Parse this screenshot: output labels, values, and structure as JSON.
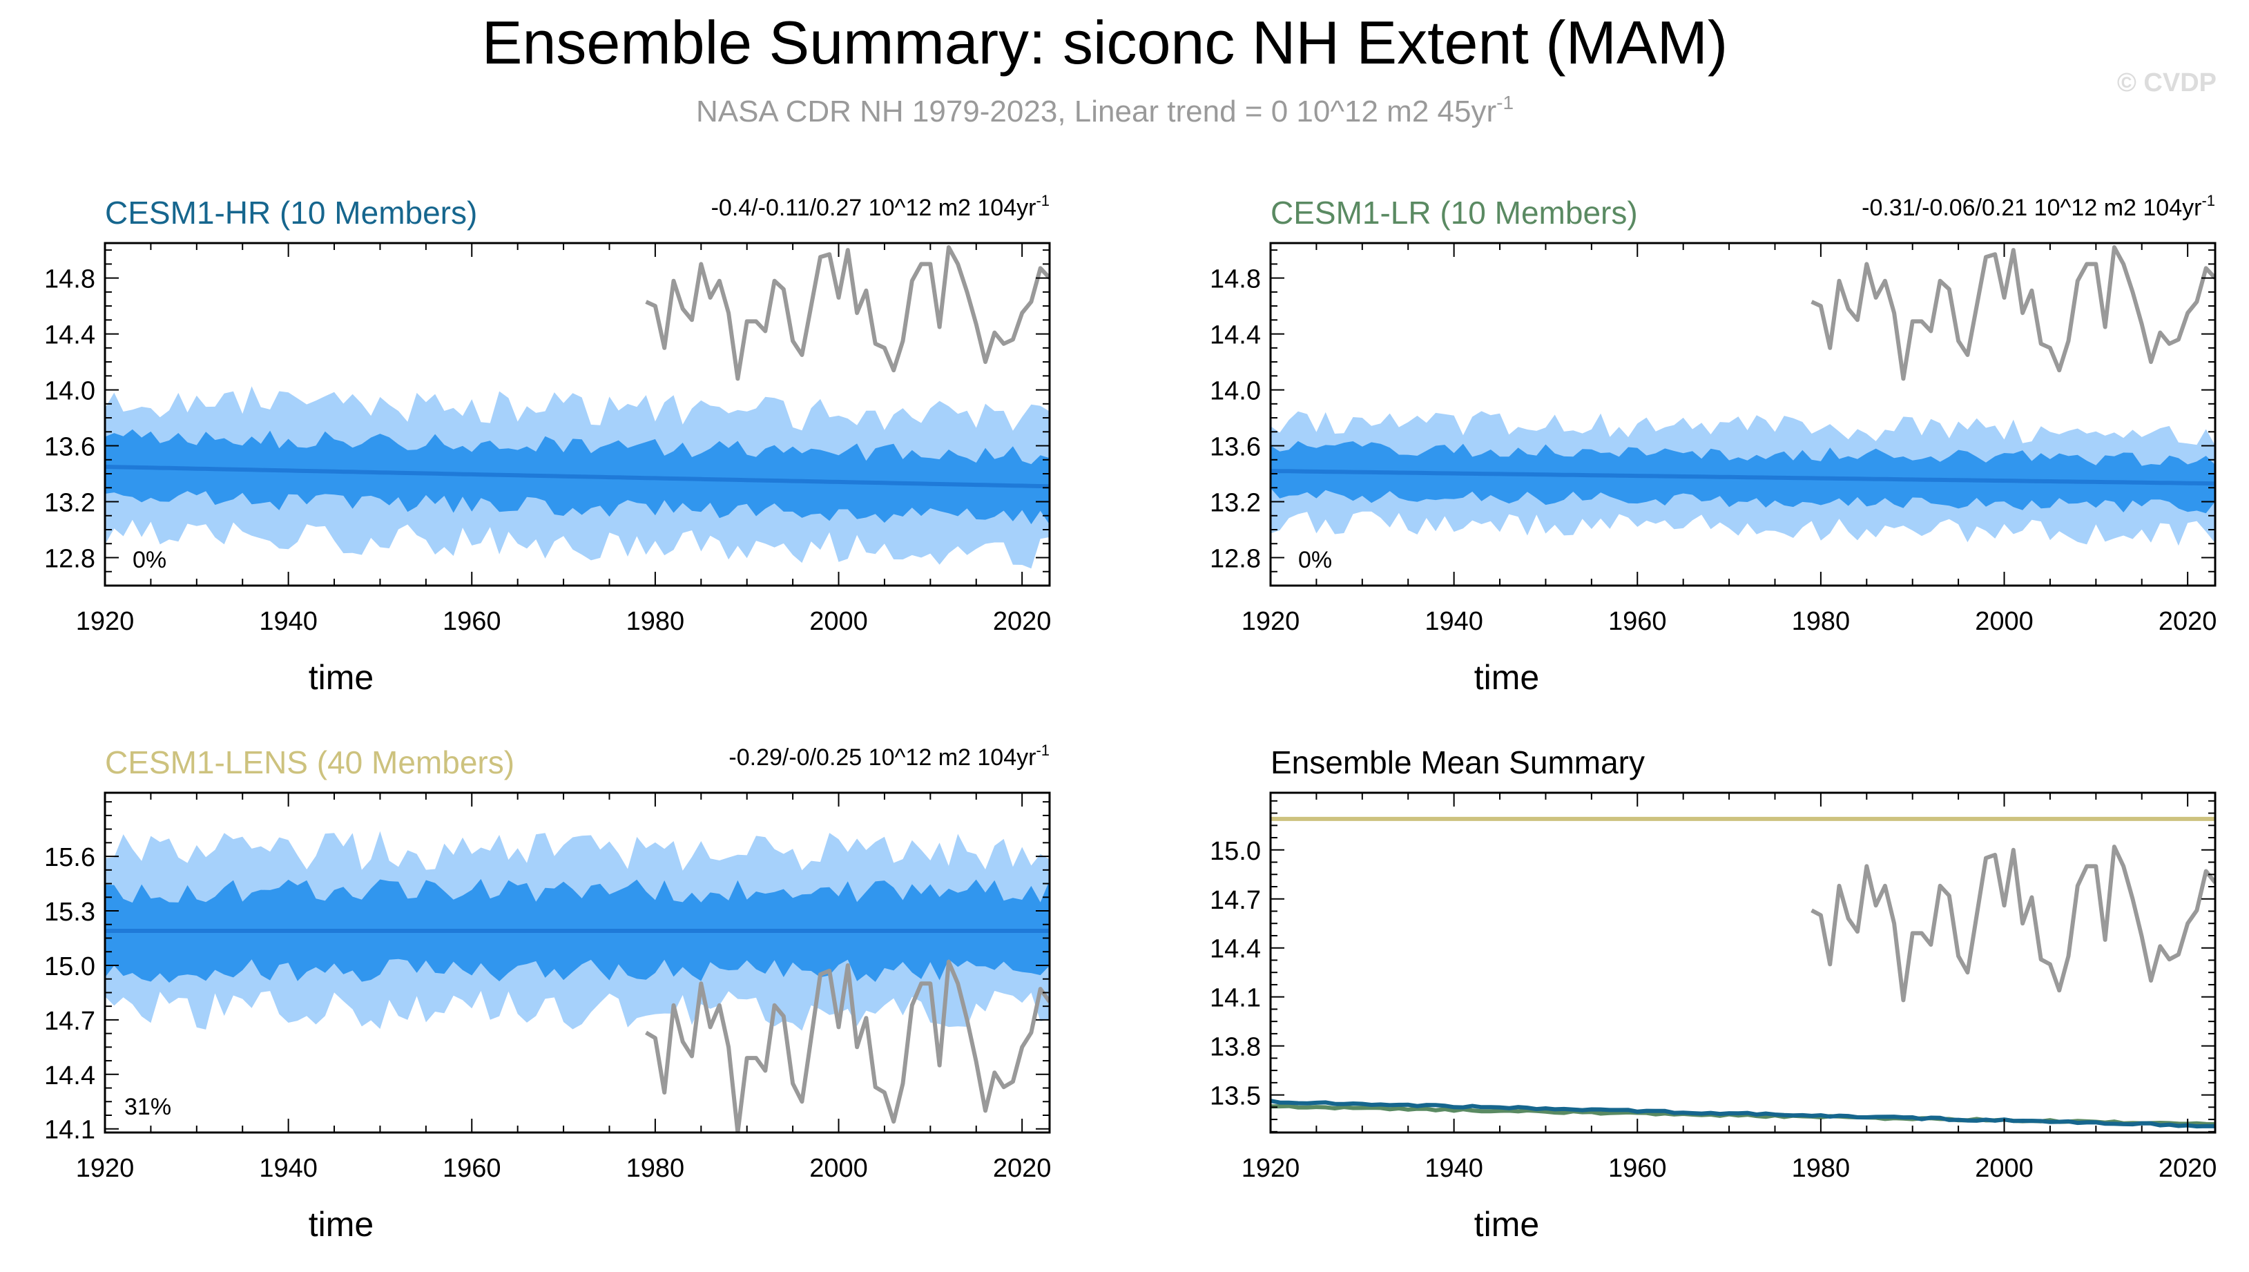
{
  "title": "Ensemble Summary: siconc NH Extent (MAM)",
  "subtitle": "NASA CDR NH 1979-2023, Linear trend = 0 10^12 m2 45yr",
  "subtitle_sup": "-1",
  "watermark": "© CVDP",
  "colors": {
    "hr": "#16668e",
    "lr": "#5a8a62",
    "lens": "#cdc27e",
    "band_outer": "#a6d1fb",
    "band_inner": "#3196ee",
    "mean_line": "#1f7ad8",
    "obs": "#999999",
    "title": "#000000",
    "subtitle": "#9a9a9a",
    "watermark": "#dcdcdc"
  },
  "obs_years": [
    1979,
    1980,
    1981,
    1982,
    1983,
    1984,
    1985,
    1986,
    1987,
    1988,
    1989,
    1990,
    1991,
    1992,
    1993,
    1994,
    1995,
    1996,
    1997,
    1998,
    1999,
    2000,
    2001,
    2002,
    2003,
    2004,
    2005,
    2006,
    2007,
    2008,
    2009,
    2010,
    2011,
    2012,
    2013,
    2014,
    2015,
    2016,
    2017,
    2018,
    2019,
    2020,
    2021,
    2022,
    2023
  ],
  "obs_values": [
    14.63,
    14.6,
    14.3,
    14.78,
    14.58,
    14.5,
    14.9,
    14.66,
    14.78,
    14.55,
    14.08,
    14.49,
    14.49,
    14.42,
    14.78,
    14.72,
    14.35,
    14.25,
    14.6,
    14.95,
    14.97,
    14.66,
    15.0,
    14.55,
    14.71,
    14.33,
    14.3,
    14.14,
    14.35,
    14.78,
    14.9,
    14.9,
    14.45,
    15.02,
    14.9,
    14.7,
    14.47,
    14.2,
    14.41,
    14.33,
    14.36,
    14.55,
    14.63,
    14.87,
    14.8
  ],
  "chart_data": [
    {
      "type": "area",
      "panel": "CESM1-HR",
      "title": "CESM1-HR (10 Members)",
      "stats": "-0.4/-0.11/0.27 10^12 m2 104yr",
      "stats_sup": "-1",
      "percent_label": "0%",
      "xlabel": "time",
      "ylabel": "",
      "xlim": [
        1920,
        2023
      ],
      "ylim": [
        12.6,
        15.05
      ],
      "yticks": [
        12.8,
        13.2,
        13.6,
        14.0,
        14.4,
        14.8
      ],
      "xticks": [
        1920,
        1940,
        1960,
        1980,
        2000,
        2020
      ],
      "mean_start": 13.45,
      "mean_end": 13.31,
      "outer_half_range": 0.48,
      "inner_half_range": 0.22
    },
    {
      "type": "area",
      "panel": "CESM1-LR",
      "title": "CESM1-LR (10 Members)",
      "stats": "-0.31/-0.06/0.21 10^12 m2 104yr",
      "stats_sup": "-1",
      "percent_label": "0%",
      "xlabel": "time",
      "ylabel": "",
      "xlim": [
        1920,
        2023
      ],
      "ylim": [
        12.6,
        15.05
      ],
      "yticks": [
        12.8,
        13.2,
        13.6,
        14.0,
        14.4,
        14.8
      ],
      "xticks": [
        1920,
        1940,
        1960,
        1980,
        2000,
        2020
      ],
      "mean_start": 13.42,
      "mean_end": 13.33,
      "outer_half_range": 0.36,
      "inner_half_range": 0.17
    },
    {
      "type": "area",
      "panel": "CESM1-LENS",
      "title": "CESM1-LENS (40 Members)",
      "stats": "-0.29/-0/0.25 10^12 m2 104yr",
      "stats_sup": "-1",
      "percent_label": "31%",
      "xlabel": "time",
      "ylabel": "",
      "xlim": [
        1920,
        2023
      ],
      "ylim": [
        14.08,
        15.95
      ],
      "yticks": [
        14.1,
        14.4,
        14.7,
        15.0,
        15.3,
        15.6
      ],
      "xticks": [
        1920,
        1940,
        1960,
        1980,
        2000,
        2020
      ],
      "mean_start": 15.19,
      "mean_end": 15.19,
      "outer_half_range": 0.44,
      "inner_half_range": 0.22
    },
    {
      "type": "line",
      "panel": "Ensemble Mean Summary",
      "title": "Ensemble Mean Summary",
      "xlabel": "time",
      "ylabel": "",
      "xlim": [
        1920,
        2023
      ],
      "ylim": [
        13.27,
        15.35
      ],
      "yticks": [
        13.5,
        13.8,
        14.1,
        14.4,
        14.7,
        15.0
      ],
      "xticks": [
        1920,
        1940,
        1960,
        1980,
        2000,
        2020
      ],
      "lens_mean": 15.19,
      "hr_mean_start": 13.46,
      "hr_mean_end": 13.31,
      "lr_mean_start": 13.43,
      "lr_mean_end": 13.32
    }
  ]
}
